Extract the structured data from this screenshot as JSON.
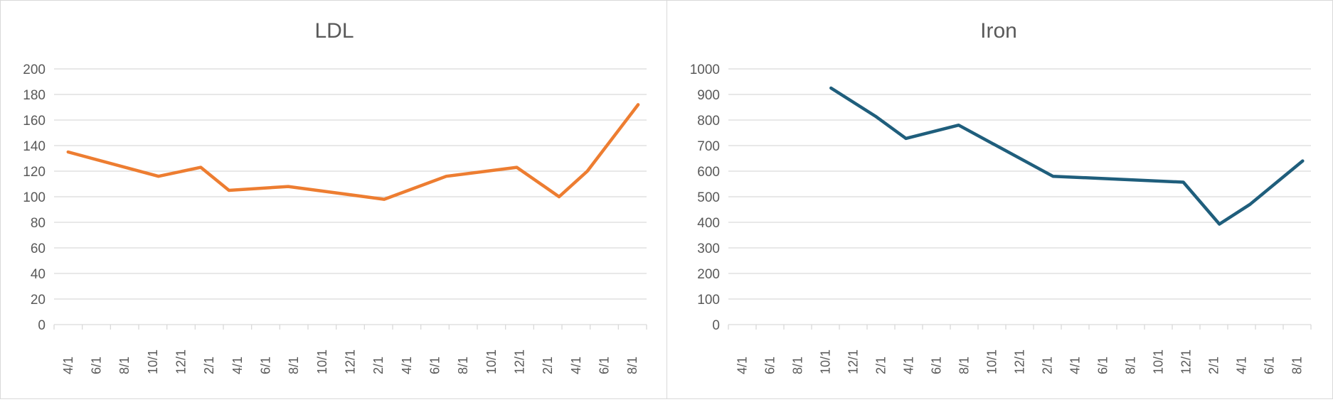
{
  "chart_data": [
    {
      "type": "line",
      "title": "LDL",
      "ylim": [
        0,
        200
      ],
      "ystep": 20,
      "categories": [
        "4/1",
        "6/1",
        "8/1",
        "10/1",
        "12/1",
        "2/1",
        "4/1",
        "6/1",
        "8/1",
        "10/1",
        "12/1",
        "2/1",
        "4/1",
        "6/1",
        "8/1",
        "10/1",
        "12/1",
        "2/1",
        "4/1",
        "6/1",
        "8/1"
      ],
      "series": [
        {
          "color": "#ed7d31",
          "points": [
            [
              0,
              135
            ],
            [
              3.2,
              116
            ],
            [
              4.7,
              123
            ],
            [
              5.7,
              105
            ],
            [
              7.8,
              108
            ],
            [
              11.2,
              98
            ],
            [
              13.4,
              116
            ],
            [
              15.9,
              123
            ],
            [
              17.4,
              100
            ],
            [
              18.4,
              120
            ],
            [
              20.2,
              172
            ]
          ]
        }
      ],
      "grid": true
    },
    {
      "type": "line",
      "title": "Iron",
      "ylim": [
        0,
        1000
      ],
      "ystep": 100,
      "categories": [
        "4/1",
        "6/1",
        "8/1",
        "10/1",
        "12/1",
        "2/1",
        "4/1",
        "6/1",
        "8/1",
        "10/1",
        "12/1",
        "2/1",
        "4/1",
        "6/1",
        "8/1",
        "10/1",
        "12/1",
        "2/1",
        "4/1",
        "6/1",
        "8/1"
      ],
      "series": [
        {
          "color": "#1f5e7c",
          "points": [
            [
              3.2,
              925
            ],
            [
              4.8,
              815
            ],
            [
              5.9,
              728
            ],
            [
              7.8,
              780
            ],
            [
              11.2,
              580
            ],
            [
              15.9,
              557
            ],
            [
              17.2,
              393
            ],
            [
              18.3,
              470
            ],
            [
              20.2,
              640
            ]
          ]
        }
      ],
      "grid": true
    }
  ]
}
